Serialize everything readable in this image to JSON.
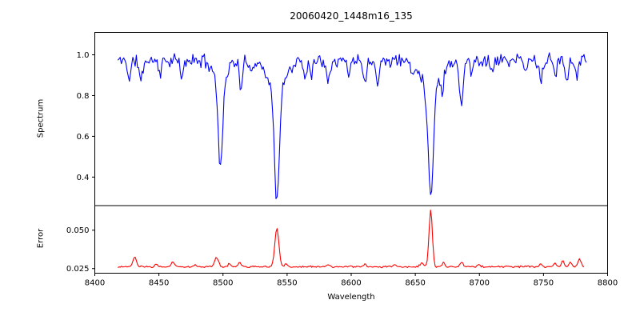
{
  "figure": {
    "title": "20060420_1448m16_135",
    "xlabel": "Wavelength",
    "ylabel_top": "Spectrum",
    "ylabel_bottom": "Error",
    "background_color": "#ffffff",
    "spine_color": "#000000"
  },
  "chart_data": [
    {
      "subplot": "spectrum",
      "type": "line",
      "line_color": "#0000ff",
      "ylabel": "Spectrum",
      "xlim": [
        8400,
        8800
      ],
      "ylim": [
        0.26,
        1.11
      ],
      "yticks": [
        {
          "v": 0.4,
          "label": "0.4"
        },
        {
          "v": 0.6,
          "label": "0.6"
        },
        {
          "v": 0.8,
          "label": "0.8"
        },
        {
          "v": 1.0,
          "label": "1.0"
        }
      ],
      "x_start": 8418,
      "x_end": 8784,
      "x_step": 0.9,
      "continuum": 0.972,
      "noise_amplitude": 0.04,
      "seed": 11,
      "absorption_lines": [
        {
          "wavelength": 8427,
          "depth": 0.09,
          "sigma": 1.2
        },
        {
          "wavelength": 8436,
          "depth": 0.1,
          "sigma": 1.3
        },
        {
          "wavelength": 8451,
          "depth": 0.07,
          "sigma": 1.0
        },
        {
          "wavelength": 8468,
          "depth": 0.09,
          "sigma": 1.2
        },
        {
          "wavelength": 8498,
          "depth": 0.42,
          "sigma": 1.8,
          "component": "core"
        },
        {
          "wavelength": 8498,
          "depth": 0.09,
          "sigma": 5.0,
          "component": "wing"
        },
        {
          "wavelength": 8514,
          "depth": 0.14,
          "sigma": 1.3
        },
        {
          "wavelength": 8522,
          "depth": 0.06,
          "sigma": 1.0
        },
        {
          "wavelength": 8542,
          "depth": 0.55,
          "sigma": 2.0,
          "component": "core"
        },
        {
          "wavelength": 8542,
          "depth": 0.13,
          "sigma": 7.0,
          "component": "wing"
        },
        {
          "wavelength": 8564,
          "depth": 0.08,
          "sigma": 1.2
        },
        {
          "wavelength": 8569,
          "depth": 0.06,
          "sigma": 1.0
        },
        {
          "wavelength": 8582,
          "depth": 0.09,
          "sigma": 1.2
        },
        {
          "wavelength": 8598,
          "depth": 0.07,
          "sigma": 1.0
        },
        {
          "wavelength": 8611,
          "depth": 0.1,
          "sigma": 1.2
        },
        {
          "wavelength": 8621,
          "depth": 0.1,
          "sigma": 1.2
        },
        {
          "wavelength": 8648,
          "depth": 0.06,
          "sigma": 1.0
        },
        {
          "wavelength": 8662,
          "depth": 0.53,
          "sigma": 2.0,
          "component": "core"
        },
        {
          "wavelength": 8662,
          "depth": 0.13,
          "sigma": 7.0,
          "component": "wing"
        },
        {
          "wavelength": 8671,
          "depth": 0.12,
          "sigma": 1.0
        },
        {
          "wavelength": 8686,
          "depth": 0.21,
          "sigma": 1.5
        },
        {
          "wavelength": 8694,
          "depth": 0.06,
          "sigma": 1.0
        },
        {
          "wavelength": 8710,
          "depth": 0.06,
          "sigma": 1.0
        },
        {
          "wavelength": 8736,
          "depth": 0.06,
          "sigma": 1.0
        },
        {
          "wavelength": 8748,
          "depth": 0.11,
          "sigma": 1.2
        },
        {
          "wavelength": 8759,
          "depth": 0.08,
          "sigma": 1.0
        },
        {
          "wavelength": 8768,
          "depth": 0.1,
          "sigma": 1.0
        },
        {
          "wavelength": 8776,
          "depth": 0.07,
          "sigma": 1.0
        }
      ]
    },
    {
      "subplot": "error",
      "type": "line",
      "line_color": "#ff0000",
      "ylabel": "Error",
      "xlim": [
        8400,
        8800
      ],
      "ylim": [
        0.022,
        0.066
      ],
      "yticks": [
        {
          "v": 0.025,
          "label": "0.025"
        },
        {
          "v": 0.05,
          "label": "0.050"
        }
      ],
      "x_start": 8418,
      "x_end": 8782,
      "x_step": 0.9,
      "baseline": 0.0262,
      "noise_amplitude": 0.0007,
      "seed": 23,
      "error_peaks": [
        {
          "wavelength": 8431,
          "height": 0.0062,
          "sigma": 1.3
        },
        {
          "wavelength": 8448,
          "height": 0.0018,
          "sigma": 1.0
        },
        {
          "wavelength": 8461,
          "height": 0.003,
          "sigma": 1.2
        },
        {
          "wavelength": 8478,
          "height": 0.0015,
          "sigma": 1.0
        },
        {
          "wavelength": 8495,
          "height": 0.006,
          "sigma": 1.5
        },
        {
          "wavelength": 8505,
          "height": 0.0022,
          "sigma": 1.0
        },
        {
          "wavelength": 8513,
          "height": 0.0028,
          "sigma": 1.2
        },
        {
          "wavelength": 8542,
          "height": 0.025,
          "sigma": 1.6
        },
        {
          "wavelength": 8549,
          "height": 0.002,
          "sigma": 1.0
        },
        {
          "wavelength": 8582,
          "height": 0.0014,
          "sigma": 1.0
        },
        {
          "wavelength": 8611,
          "height": 0.0016,
          "sigma": 1.0
        },
        {
          "wavelength": 8634,
          "height": 0.0016,
          "sigma": 1.0
        },
        {
          "wavelength": 8655,
          "height": 0.0022,
          "sigma": 1.5
        },
        {
          "wavelength": 8662,
          "height": 0.037,
          "sigma": 1.3
        },
        {
          "wavelength": 8672,
          "height": 0.0028,
          "sigma": 1.0
        },
        {
          "wavelength": 8686,
          "height": 0.003,
          "sigma": 1.2
        },
        {
          "wavelength": 8700,
          "height": 0.0014,
          "sigma": 1.0
        },
        {
          "wavelength": 8748,
          "height": 0.0018,
          "sigma": 1.0
        },
        {
          "wavelength": 8759,
          "height": 0.0026,
          "sigma": 1.0
        },
        {
          "wavelength": 8765,
          "height": 0.0042,
          "sigma": 1.0
        },
        {
          "wavelength": 8771,
          "height": 0.0032,
          "sigma": 1.0
        },
        {
          "wavelength": 8778,
          "height": 0.0046,
          "sigma": 1.2
        }
      ]
    }
  ],
  "x_axis": {
    "ticks": [
      {
        "v": 8400,
        "label": "8400"
      },
      {
        "v": 8450,
        "label": "8450"
      },
      {
        "v": 8500,
        "label": "8500"
      },
      {
        "v": 8550,
        "label": "8550"
      },
      {
        "v": 8600,
        "label": "8600"
      },
      {
        "v": 8650,
        "label": "8650"
      },
      {
        "v": 8700,
        "label": "8700"
      },
      {
        "v": 8750,
        "label": "8750"
      },
      {
        "v": 8800,
        "label": "8800"
      }
    ]
  }
}
